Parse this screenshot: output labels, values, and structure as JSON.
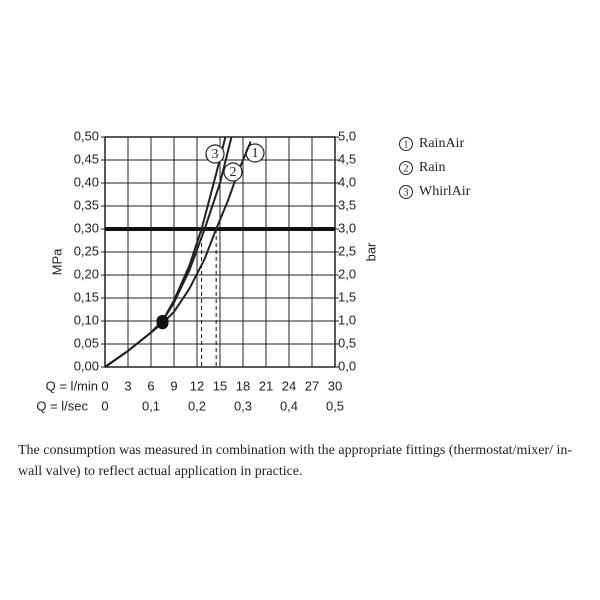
{
  "chart_data": {
    "type": "line",
    "y_label": "MPa",
    "y2_label": "bar",
    "x_row_label": "Q = l/min",
    "x2_row_label": "Q = l/sec",
    "xlim": [
      0,
      30
    ],
    "xticks": [
      0,
      3,
      6,
      9,
      12,
      15,
      18,
      21,
      24,
      27,
      30
    ],
    "x2lim": [
      0,
      0.5
    ],
    "x2ticks": [
      0,
      {
        "value": 0.1,
        "label": "0,1"
      },
      {
        "value": 0.2,
        "label": "0,2"
      },
      {
        "value": 0.3,
        "label": "0,3"
      },
      {
        "value": 0.4,
        "label": "0,4"
      },
      {
        "value": 0.5,
        "label": "0,5"
      }
    ],
    "ylim": [
      0,
      0.5
    ],
    "yticks": [
      {
        "value": 0,
        "label": "0,00"
      },
      {
        "value": 0.05,
        "label": "0,05"
      },
      {
        "value": 0.1,
        "label": "0,10"
      },
      {
        "value": 0.15,
        "label": "0,15"
      },
      {
        "value": 0.2,
        "label": "0,20"
      },
      {
        "value": 0.25,
        "label": "0,25"
      },
      {
        "value": 0.3,
        "label": "0,30"
      },
      {
        "value": 0.35,
        "label": "0,35"
      },
      {
        "value": 0.4,
        "label": "0,40"
      },
      {
        "value": 0.45,
        "label": "0,45"
      },
      {
        "value": 0.5,
        "label": "0,50"
      }
    ],
    "y2lim": [
      0,
      5
    ],
    "y2ticks": [
      {
        "value": 0,
        "label": "0,0"
      },
      {
        "value": 0.5,
        "label": "0,5"
      },
      {
        "value": 1,
        "label": "1,0"
      },
      {
        "value": 1.5,
        "label": "1,5"
      },
      {
        "value": 2,
        "label": "2,0"
      },
      {
        "value": 2.5,
        "label": "2,5"
      },
      {
        "value": 3,
        "label": "3,0"
      },
      {
        "value": 3.5,
        "label": "3,5"
      },
      {
        "value": 4,
        "label": "4,0"
      },
      {
        "value": 4.5,
        "label": "4,5"
      },
      {
        "value": 5,
        "label": "5,0"
      }
    ],
    "grid": true,
    "reference_y": 0.3,
    "reference_x": [
      12.6,
      14.5
    ],
    "series": [
      {
        "label": "1",
        "name": "RainAir",
        "color": "#222222",
        "x": [
          0,
          3,
          6,
          7.5,
          9,
          11,
          13,
          15,
          16.5
        ],
        "values": [
          0,
          0.035,
          0.075,
          0.1,
          0.14,
          0.21,
          0.3,
          0.4,
          0.5
        ]
      },
      {
        "label": "2",
        "name": "Rain",
        "color": "#222222",
        "x": [
          0,
          3,
          6,
          7.5,
          9,
          11,
          13,
          14.5,
          16,
          17.5,
          19
        ],
        "values": [
          0,
          0.035,
          0.075,
          0.095,
          0.12,
          0.17,
          0.235,
          0.3,
          0.36,
          0.43,
          0.49
        ]
      },
      {
        "label": "3",
        "name": "WhirlAir",
        "color": "#222222",
        "x": [
          0,
          3,
          6,
          7.5,
          9,
          11,
          12.6,
          14.5,
          15.7
        ],
        "values": [
          0,
          0.035,
          0.075,
          0.1,
          0.145,
          0.22,
          0.3,
          0.42,
          0.5
        ]
      }
    ],
    "note": "The consumption was measured in combination with the appropriate fittings (thermostat/mixer/ in-wall valve) to reflect actual application in practice."
  }
}
